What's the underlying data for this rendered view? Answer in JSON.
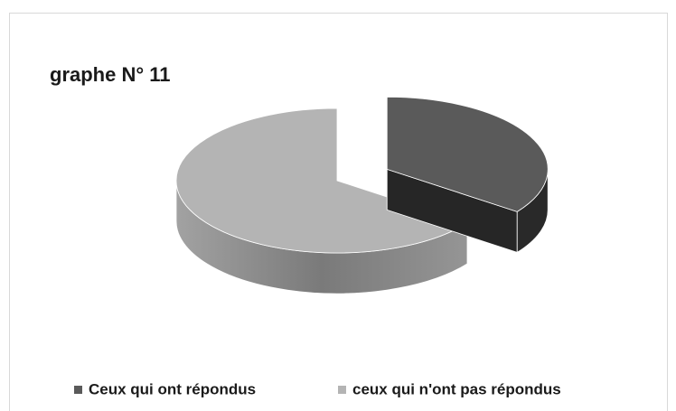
{
  "chart_data": {
    "type": "pie",
    "title": "graphe N° 11",
    "categories": [
      "Ceux qui ont répondus",
      "ceux qui n'ont pas répondus"
    ],
    "values": [
      35,
      65
    ],
    "colors": [
      "#5a5a5a",
      "#b4b4b4"
    ],
    "legend": "bottom"
  }
}
